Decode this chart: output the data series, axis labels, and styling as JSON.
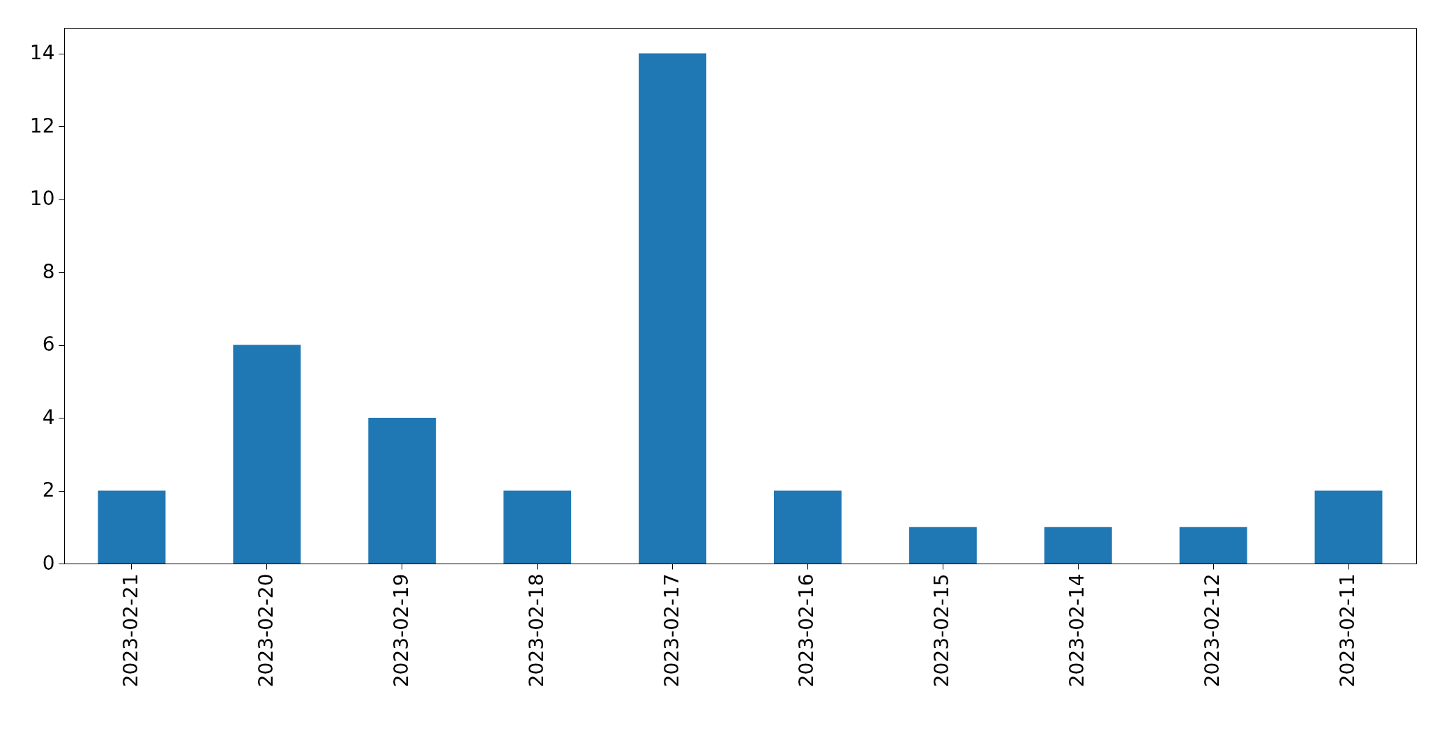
{
  "chart_data": {
    "type": "bar",
    "categories": [
      "2023-02-21",
      "2023-02-20",
      "2023-02-19",
      "2023-02-18",
      "2023-02-17",
      "2023-02-16",
      "2023-02-15",
      "2023-02-14",
      "2023-02-12",
      "2023-02-11"
    ],
    "values": [
      2,
      6,
      4,
      2,
      14,
      2,
      1,
      1,
      1,
      2
    ],
    "color": "#1f77b4",
    "ylim": [
      0,
      14.7
    ],
    "yticks": [
      0,
      2,
      4,
      6,
      8,
      10,
      12,
      14
    ]
  }
}
